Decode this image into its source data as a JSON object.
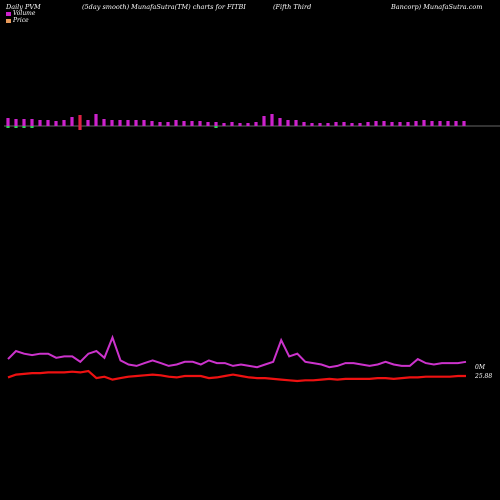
{
  "header": {
    "left": "Daily PVM",
    "mid": "(5day smooth) MunafaSutra(TM) charts for FITBI",
    "right1": "(Fifth Third",
    "right2": "Bancorp) MunafaSutra.com"
  },
  "colors": {
    "volume_up": "#cc22cc",
    "volume_down": "#dd2244",
    "volume_green": "#33cc55",
    "volume_line": "#cc33cc",
    "price_line": "#ee1111",
    "baseline": "#cccccc"
  },
  "chart_data": {
    "type": "bar",
    "title": "",
    "legend": [
      {
        "name": "Volume",
        "color": "#cc22cc"
      },
      {
        "name": "Price",
        "color": "#e89a5a"
      }
    ],
    "legend_position": "top-left",
    "volume_bars": [
      {
        "v": 8,
        "c": "up"
      },
      {
        "v": 7,
        "c": "up"
      },
      {
        "v": 7,
        "c": "up"
      },
      {
        "v": 7,
        "c": "up"
      },
      {
        "v": 6,
        "c": "up"
      },
      {
        "v": 6,
        "c": "up"
      },
      {
        "v": 5,
        "c": "up"
      },
      {
        "v": 6,
        "c": "up"
      },
      {
        "v": 9,
        "c": "up"
      },
      {
        "v": 11,
        "c": "down"
      },
      {
        "v": 6,
        "c": "up"
      },
      {
        "v": 12,
        "c": "up"
      },
      {
        "v": 7,
        "c": "up"
      },
      {
        "v": 6,
        "c": "up"
      },
      {
        "v": 6,
        "c": "up"
      },
      {
        "v": 6,
        "c": "up"
      },
      {
        "v": 6,
        "c": "up"
      },
      {
        "v": 6,
        "c": "up"
      },
      {
        "v": 5,
        "c": "up"
      },
      {
        "v": 4,
        "c": "up"
      },
      {
        "v": 4,
        "c": "up"
      },
      {
        "v": 6,
        "c": "up"
      },
      {
        "v": 5,
        "c": "up"
      },
      {
        "v": 5,
        "c": "up"
      },
      {
        "v": 5,
        "c": "up"
      },
      {
        "v": 4,
        "c": "up"
      },
      {
        "v": 4,
        "c": "up"
      },
      {
        "v": 3,
        "c": "up"
      },
      {
        "v": 4,
        "c": "up"
      },
      {
        "v": 3,
        "c": "up"
      },
      {
        "v": 3,
        "c": "up"
      },
      {
        "v": 4,
        "c": "up"
      },
      {
        "v": 10,
        "c": "up"
      },
      {
        "v": 12,
        "c": "up"
      },
      {
        "v": 8,
        "c": "up"
      },
      {
        "v": 6,
        "c": "up"
      },
      {
        "v": 6,
        "c": "up"
      },
      {
        "v": 4,
        "c": "up"
      },
      {
        "v": 3,
        "c": "up"
      },
      {
        "v": 3,
        "c": "up"
      },
      {
        "v": 3,
        "c": "up"
      },
      {
        "v": 4,
        "c": "up"
      },
      {
        "v": 4,
        "c": "up"
      },
      {
        "v": 3,
        "c": "up"
      },
      {
        "v": 3,
        "c": "up"
      },
      {
        "v": 4,
        "c": "up"
      },
      {
        "v": 5,
        "c": "up"
      },
      {
        "v": 5,
        "c": "up"
      },
      {
        "v": 4,
        "c": "up"
      },
      {
        "v": 4,
        "c": "up"
      },
      {
        "v": 4,
        "c": "up"
      },
      {
        "v": 5,
        "c": "up"
      },
      {
        "v": 6,
        "c": "up"
      },
      {
        "v": 5,
        "c": "up"
      },
      {
        "v": 5,
        "c": "up"
      },
      {
        "v": 5,
        "c": "up"
      },
      {
        "v": 5,
        "c": "up"
      },
      {
        "v": 5,
        "c": "up"
      }
    ],
    "volume_neg_marks": [
      0,
      1,
      2,
      3,
      9,
      26
    ],
    "volume_line": [
      14,
      20,
      18,
      17,
      18,
      18,
      15,
      16,
      16,
      12,
      18,
      20,
      15,
      30,
      13,
      10,
      9,
      11,
      13,
      11,
      9,
      10,
      12,
      12,
      10,
      13,
      11,
      11,
      9,
      10,
      9,
      8,
      10,
      12,
      28,
      16,
      18,
      12,
      11,
      10,
      8,
      9,
      11,
      11,
      10,
      9,
      10,
      12,
      10,
      9,
      9,
      14,
      11,
      10,
      11,
      11,
      11,
      12
    ],
    "price_line": [
      17.5,
      17.9,
      18.0,
      18.1,
      18.1,
      18.2,
      18.2,
      18.2,
      18.3,
      18.2,
      18.4,
      17.4,
      17.6,
      17.2,
      17.4,
      17.6,
      17.7,
      17.8,
      17.9,
      17.8,
      17.6,
      17.5,
      17.7,
      17.7,
      17.7,
      17.4,
      17.5,
      17.7,
      17.9,
      17.7,
      17.5,
      17.4,
      17.4,
      17.3,
      17.2,
      17.1,
      17.0,
      17.1,
      17.1,
      17.2,
      17.3,
      17.2,
      17.3,
      17.3,
      17.3,
      17.3,
      17.4,
      17.4,
      17.3,
      17.4,
      17.5,
      17.5,
      17.6,
      17.6,
      17.6,
      17.6,
      17.7,
      17.7
    ],
    "volume_last_label": "0M",
    "price_last_label": "25.88"
  }
}
